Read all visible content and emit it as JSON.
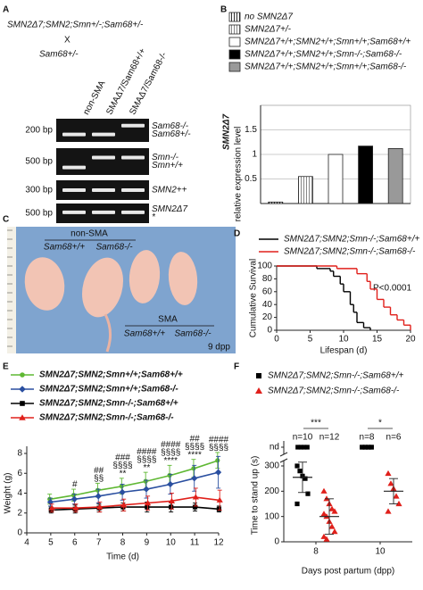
{
  "panel_a": {
    "letter": "A",
    "cross_line1": "SMN2Δ7;SMN2;Smn+/-;Sam68+/-",
    "cross_x": "X",
    "cross_line2": "Sam68+/-",
    "lanes": [
      "non-SMA",
      "SMAΔ7/Sam68+/+",
      "SMAΔ7/Sam68-/-"
    ],
    "gels": [
      {
        "size": "200 bp",
        "bands": [
          "Sam68-/-",
          "Sam68+/-"
        ]
      },
      {
        "size": "500 bp",
        "bands": [
          "Smn-/-",
          "Smn+/+"
        ]
      },
      {
        "size": "300 bp",
        "bands": [
          "SMN2++"
        ]
      },
      {
        "size": "500 bp",
        "bands": [
          "SMN2Δ7",
          "*"
        ]
      }
    ]
  },
  "panel_c": {
    "letter": "C",
    "top_group": "non-SMA",
    "top_labels": [
      "Sam68+/+",
      "Sam68-/-"
    ],
    "bottom_group": "SMA",
    "bottom_labels": [
      "Sam68+/+",
      "Sam68-/-"
    ],
    "age": "9 dpp"
  },
  "chart_data": [
    {
      "letter": "B",
      "type": "bar",
      "ylabel_top": "SMN2Δ7",
      "ylabel": "relative expression level",
      "categories": [
        "no SMN2Δ7",
        "SMN2Δ7+/-",
        "SMN2Δ7+/+;SMN2+/+;Smn+/+;Sam68+/+",
        "SMN2Δ7+/+;SMN2+/+;Smn-/-;Sam68-/-",
        "SMN2Δ7+/+;SMN2+/+;Smn+/+;Sam68-/-"
      ],
      "values": [
        0.03,
        0.55,
        1.0,
        1.17,
        1.12
      ],
      "colors": [
        "#333333",
        "#888888",
        "#ffffff",
        "#000000",
        "#999999"
      ],
      "hatched": [
        true,
        true,
        false,
        false,
        false
      ],
      "ylim": [
        0,
        2
      ],
      "yticks": [
        0.5,
        1,
        1.5
      ],
      "grid": true
    },
    {
      "letter": "D",
      "type": "step",
      "xlabel": "Lifespan (d)",
      "ylabel": "Cumulative Survival",
      "annotation": "P<0.0001",
      "xlim": [
        0,
        20
      ],
      "xticks": [
        0,
        5,
        10,
        15,
        20
      ],
      "ylim": [
        0,
        100
      ],
      "yticks": [
        0,
        20,
        40,
        60,
        80,
        100
      ],
      "series": [
        {
          "name": "SMN2Δ7;SMN2;Smn-/-;Sam68+/+",
          "color": "#000000",
          "x": [
            0,
            6,
            8,
            8.5,
            9.5,
            10,
            11,
            11.5,
            12,
            13,
            14
          ],
          "values": [
            100,
            96,
            92,
            84,
            72,
            60,
            40,
            28,
            12,
            4,
            0
          ]
        },
        {
          "name": "SMN2Δ7;SMN2;Smn-/-;Sam68-/-",
          "color": "#e0201b",
          "x": [
            0,
            9,
            12,
            13.5,
            14,
            15,
            16,
            17,
            18,
            19,
            20
          ],
          "values": [
            100,
            96,
            88,
            76,
            64,
            48,
            36,
            24,
            16,
            8,
            0
          ]
        }
      ]
    },
    {
      "letter": "E",
      "type": "line",
      "xlabel": "Time (d)",
      "ylabel": "Weight (g)",
      "xlim": [
        4,
        12
      ],
      "xticks": [
        4,
        5,
        6,
        7,
        8,
        9,
        10,
        11,
        12
      ],
      "ylim": [
        0,
        8
      ],
      "yticks": [
        0,
        2,
        4,
        6,
        8
      ],
      "x": [
        5,
        6,
        7,
        8,
        9,
        10,
        11,
        12
      ],
      "series": [
        {
          "name": "SMN2Δ7;SMN2;Smn+/+;Sam68+/+",
          "color": "#5fb833",
          "marker": "circle",
          "values": [
            3.4,
            3.8,
            4.3,
            4.7,
            5.2,
            5.8,
            6.5,
            7.3
          ],
          "errors": [
            0.5,
            0.6,
            0.7,
            0.8,
            0.9,
            1.0,
            0.9,
            0.8
          ]
        },
        {
          "name": "SMN2Δ7;SMN2;Smn+/+;Sam68-/-",
          "color": "#2a4fa0",
          "marker": "diamond",
          "values": [
            3.1,
            3.4,
            3.7,
            4.1,
            4.4,
            4.9,
            5.5,
            6.1
          ],
          "errors": [
            0.4,
            0.5,
            0.7,
            0.8,
            0.9,
            1.0,
            1.3,
            1.6
          ]
        },
        {
          "name": "SMN2Δ7;SMN2;Smn-/-;Sam68+/+",
          "color": "#000000",
          "marker": "square",
          "values": [
            2.3,
            2.4,
            2.5,
            2.6,
            2.6,
            2.6,
            2.6,
            2.4
          ],
          "errors": [
            0.3,
            0.4,
            0.4,
            0.4,
            0.5,
            0.5,
            0.4,
            0.3
          ]
        },
        {
          "name": "SMN2Δ7;SMN2;Smn-/-;Sam68-/-",
          "color": "#e0201b",
          "marker": "triangle",
          "values": [
            2.5,
            2.5,
            2.6,
            2.8,
            3.0,
            3.2,
            3.6,
            3.3
          ],
          "errors": [
            0.4,
            0.4,
            0.5,
            0.6,
            0.7,
            0.8,
            0.9,
            1.0
          ]
        }
      ],
      "annotations": [
        {
          "x": 6,
          "lines": [
            "#"
          ]
        },
        {
          "x": 7,
          "lines": [
            "##",
            "§§"
          ]
        },
        {
          "x": 8,
          "lines": [
            "###",
            "§§§§",
            "**"
          ]
        },
        {
          "x": 9,
          "lines": [
            "####",
            "§§§§",
            "**"
          ]
        },
        {
          "x": 10,
          "lines": [
            "####",
            "§§§§",
            "****"
          ]
        },
        {
          "x": 11,
          "lines": [
            "##",
            "§§§§",
            "****"
          ]
        },
        {
          "x": 12,
          "lines": [
            "####",
            "§§§§"
          ]
        }
      ]
    },
    {
      "letter": "F",
      "type": "scatter",
      "xlabel": "Days post partum (dpp)",
      "ylabel": "Time to stand up (s)",
      "nd_label": "nd",
      "categories": [
        "8",
        "10"
      ],
      "ylim": [
        0,
        300
      ],
      "yticks": [
        0,
        100,
        200,
        300
      ],
      "significance": [
        "***",
        "*"
      ],
      "series": [
        {
          "name": "SMN2Δ7;SMN2;Smn-/-;Sam68+/+",
          "color": "#000000",
          "marker": "square",
          "values": [
            [
              300,
              280,
              260,
              250,
              190,
              150
            ],
            []
          ],
          "nd_counts": [
            4,
            8
          ],
          "means": [
            255,
            null
          ],
          "sds": [
            60,
            null
          ],
          "n_labels": [
            "n=10",
            "n=8"
          ]
        },
        {
          "name": "SMN2Δ7;SMN2;Smn-/-;Sam68-/-",
          "color": "#e0201b",
          "marker": "triangle",
          "values": [
            [
              200,
              170,
              150,
              130,
              120,
              110,
              100,
              80,
              60,
              40,
              20,
              10
            ],
            [
              270,
              230,
              210,
              180,
              150,
              120
            ]
          ],
          "nd_counts": [
            0,
            0
          ],
          "means": [
            100,
            200
          ],
          "sds": [
            70,
            50
          ],
          "n_labels": [
            "n=12",
            "n=6"
          ]
        }
      ]
    }
  ]
}
